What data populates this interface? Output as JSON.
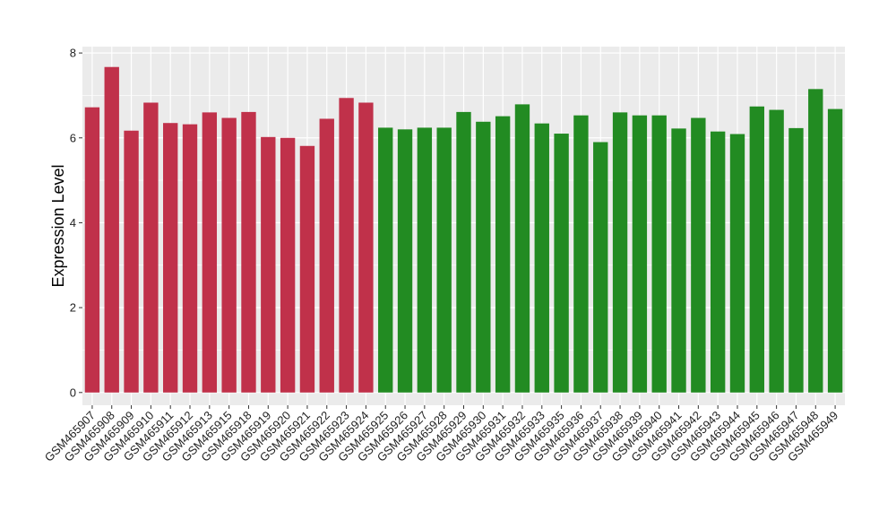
{
  "chart_data": {
    "type": "bar",
    "title": "",
    "xlabel": "",
    "ylabel": "Expression Level",
    "ylim": [
      -0.3,
      8.15
    ],
    "yticks": [
      0,
      2,
      4,
      6,
      8
    ],
    "grid": true,
    "background": "#EBEBEB",
    "gridline_color": "#FFFFFF",
    "group_colors": [
      "#C0314A",
      "#228B22"
    ],
    "categories": [
      "GSM465907",
      "GSM465908",
      "GSM465909",
      "GSM465910",
      "GSM465911",
      "GSM465912",
      "GSM465913",
      "GSM465915",
      "GSM465918",
      "GSM465919",
      "GSM465920",
      "GSM465921",
      "GSM465922",
      "GSM465923",
      "GSM465924",
      "GSM465925",
      "GSM465926",
      "GSM465927",
      "GSM465928",
      "GSM465929",
      "GSM465930",
      "GSM465931",
      "GSM465932",
      "GSM465933",
      "GSM465935",
      "GSM465936",
      "GSM465937",
      "GSM465938",
      "GSM465939",
      "GSM465940",
      "GSM465941",
      "GSM465942",
      "GSM465943",
      "GSM465944",
      "GSM465945",
      "GSM465946",
      "GSM465947",
      "GSM465948",
      "GSM465949"
    ],
    "values": [
      6.72,
      7.67,
      6.17,
      6.83,
      6.35,
      6.32,
      6.6,
      6.47,
      6.61,
      6.02,
      6.0,
      5.81,
      6.45,
      6.94,
      6.83,
      6.24,
      6.2,
      6.24,
      6.24,
      6.61,
      6.38,
      6.51,
      6.79,
      6.34,
      6.1,
      6.53,
      5.9,
      6.6,
      6.53,
      6.53,
      6.22,
      6.47,
      6.15,
      6.09,
      6.74,
      6.66,
      6.23,
      7.15,
      6.68
    ],
    "groups": [
      0,
      0,
      0,
      0,
      0,
      0,
      0,
      0,
      0,
      0,
      0,
      0,
      0,
      0,
      0,
      1,
      1,
      1,
      1,
      1,
      1,
      1,
      1,
      1,
      1,
      1,
      1,
      1,
      1,
      1,
      1,
      1,
      1,
      1,
      1,
      1,
      1,
      1,
      1
    ]
  }
}
